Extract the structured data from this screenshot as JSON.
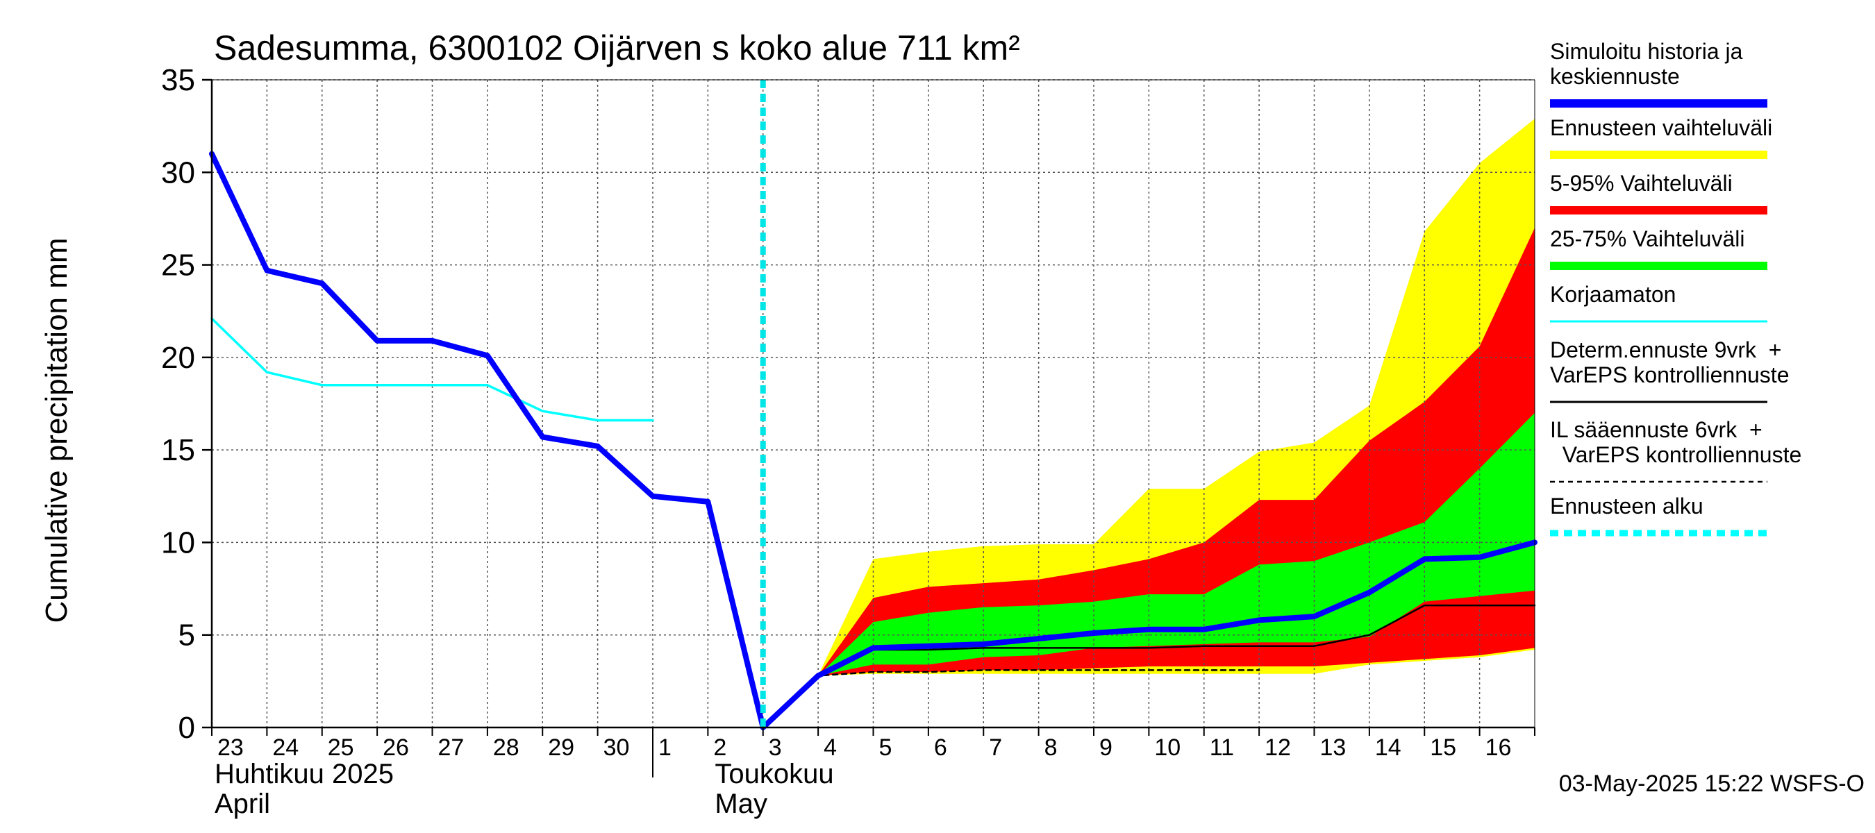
{
  "chart_data": {
    "type": "area",
    "title": "Sadesumma, 6300102 Oijärven s koko alue 711 km²",
    "ylabel": "Cumulative precipitation   mm",
    "xlabel": "",
    "ylim": [
      0,
      35
    ],
    "xlim": [
      "2025-04-23",
      "2025-05-17"
    ],
    "grid": true,
    "legend_position": "right",
    "y_ticks": [
      0,
      5,
      10,
      15,
      20,
      25,
      30,
      35
    ],
    "x_ticks": [
      "23",
      "24",
      "25",
      "26",
      "27",
      "28",
      "29",
      "30",
      "1",
      "2",
      "3",
      "4",
      "5",
      "6",
      "7",
      "8",
      "9",
      "10",
      "11",
      "12",
      "13",
      "14",
      "15",
      "16"
    ],
    "month_labels": [
      {
        "line1": "Huhtikuu  2025",
        "line2": "April"
      },
      {
        "line1": "Toukokuu",
        "line2": "May"
      }
    ],
    "forecast_start": "2025-05-03",
    "x": [
      "2025-04-23",
      "2025-04-24",
      "2025-04-25",
      "2025-04-26",
      "2025-04-27",
      "2025-04-28",
      "2025-04-29",
      "2025-04-30",
      "2025-05-01",
      "2025-05-02",
      "2025-05-03",
      "2025-05-04",
      "2025-05-05",
      "2025-05-06",
      "2025-05-07",
      "2025-05-08",
      "2025-05-09",
      "2025-05-10",
      "2025-05-11",
      "2025-05-12",
      "2025-05-13",
      "2025-05-14",
      "2025-05-15",
      "2025-05-16",
      "2025-05-17"
    ],
    "series": [
      {
        "name": "Simuloitu historia ja keskiennuste",
        "color": "#0000ff",
        "values": [
          31.0,
          24.7,
          24.0,
          20.9,
          20.9,
          20.1,
          15.7,
          15.2,
          12.5,
          12.2,
          0.0,
          2.8,
          4.3,
          4.4,
          4.5,
          4.8,
          5.1,
          5.3,
          5.3,
          5.8,
          6.0,
          7.3,
          9.1,
          9.2,
          10.0
        ]
      },
      {
        "name": "Korjaamaton",
        "color": "#00ffff",
        "values": [
          22.1,
          19.2,
          18.5,
          18.5,
          18.5,
          18.5,
          17.1,
          16.6,
          16.6,
          null,
          null,
          null,
          null,
          null,
          null,
          null,
          null,
          null,
          null,
          null,
          null,
          null,
          null,
          null,
          null
        ]
      },
      {
        "name": "Determ.ennuste 9vrk + VarEPS kontrolliennuste",
        "color": "#000000",
        "values": [
          null,
          null,
          null,
          null,
          null,
          null,
          null,
          null,
          null,
          null,
          0.0,
          2.8,
          4.2,
          4.2,
          4.3,
          4.3,
          4.3,
          4.3,
          4.4,
          4.4,
          4.4,
          5.0,
          6.6,
          6.6,
          6.6
        ]
      },
      {
        "name": "IL sääennuste 6vrk + VarEPS kontrolliennuste",
        "color": "#000000",
        "values": [
          null,
          null,
          null,
          null,
          null,
          null,
          null,
          null,
          null,
          null,
          0.0,
          2.8,
          3.0,
          3.0,
          3.1,
          3.1,
          3.1,
          3.1,
          3.1,
          3.1,
          null,
          null,
          null,
          null,
          null
        ]
      }
    ],
    "bands": [
      {
        "name": "Ennusteen vaihteluväli",
        "color": "#ffff00",
        "lower": [
          0.0,
          2.8,
          2.9,
          2.9,
          2.9,
          2.9,
          2.9,
          2.9,
          2.9,
          2.9,
          2.9,
          3.4,
          3.6,
          3.8,
          4.2
        ],
        "upper": [
          0.0,
          2.8,
          9.1,
          9.5,
          9.8,
          9.9,
          9.9,
          12.9,
          12.9,
          14.9,
          15.4,
          17.4,
          26.8,
          30.5,
          32.9
        ]
      },
      {
        "name": "5-95% Vaihteluväli",
        "color": "#ff0000",
        "lower": [
          0.0,
          2.8,
          3.0,
          3.0,
          3.1,
          3.1,
          3.2,
          3.3,
          3.3,
          3.3,
          3.3,
          3.5,
          3.7,
          3.9,
          4.3
        ],
        "upper": [
          0.0,
          2.8,
          7.0,
          7.6,
          7.8,
          8.0,
          8.5,
          9.1,
          10.0,
          12.3,
          12.3,
          15.5,
          17.6,
          20.6,
          27.0
        ]
      },
      {
        "name": "25-75% Vaihteluväli",
        "color": "#00ff00",
        "lower": [
          0.0,
          2.8,
          3.4,
          3.4,
          3.8,
          3.9,
          4.3,
          4.4,
          4.5,
          4.6,
          4.6,
          4.9,
          6.8,
          7.1,
          7.4
        ],
        "upper": [
          0.0,
          2.8,
          5.7,
          6.2,
          6.5,
          6.6,
          6.8,
          7.2,
          7.2,
          8.8,
          9.0,
          10.0,
          11.1,
          14.0,
          17.0
        ]
      }
    ],
    "legend": [
      {
        "label_lines": [
          "Simuloitu historia ja",
          "keskiennuste"
        ],
        "color": "#0000ff",
        "style": "thick"
      },
      {
        "label_lines": [
          "Ennusteen vaihteluväli"
        ],
        "color": "#ffff00",
        "style": "thick"
      },
      {
        "label_lines": [
          "5-95% Vaihteluväli"
        ],
        "color": "#ff0000",
        "style": "thick"
      },
      {
        "label_lines": [
          "25-75% Vaihteluväli"
        ],
        "color": "#00ff00",
        "style": "thick"
      },
      {
        "label_lines": [
          "Korjaamaton"
        ],
        "color": "#00ffff",
        "style": "thin"
      },
      {
        "label_lines": [
          "Determ.ennuste 9vrk  +",
          "VarEPS kontrolliennuste"
        ],
        "color": "#000000",
        "style": "thin"
      },
      {
        "label_lines": [
          "IL sääennuste 6vrk  +",
          "  VarEPS kontrolliennuste"
        ],
        "color": "#000000",
        "style": "dashed"
      },
      {
        "label_lines": [
          "Ennusteen alku"
        ],
        "color": "#00ffff",
        "style": "dotted-thick"
      }
    ],
    "timestamp": "03-May-2025 15:22 WSFS-O"
  }
}
